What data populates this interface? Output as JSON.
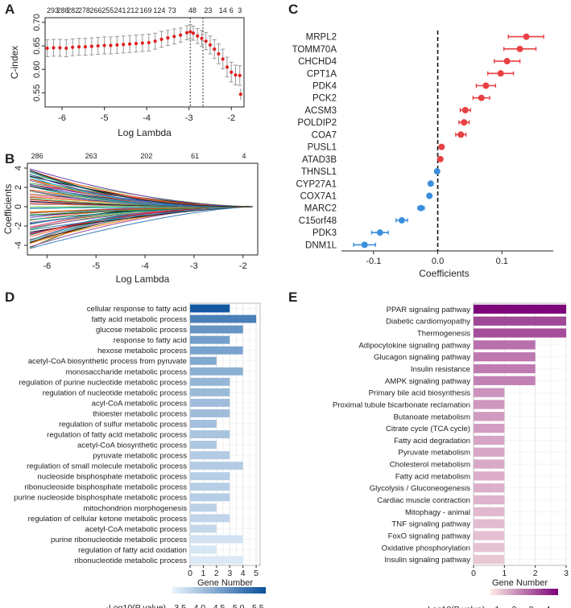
{
  "chart_data": [
    {
      "panel": "A",
      "type": "line",
      "xlabel": "Log Lambda",
      "ylabel": "C-index",
      "xlim": [
        -6.4,
        -1.7
      ],
      "ylim": [
        0.52,
        0.71
      ],
      "xticks": [
        -6,
        -5,
        -4,
        -3,
        -2
      ],
      "yticks": [
        0.55,
        0.6,
        0.65,
        0.7
      ],
      "top_counts": [
        "293",
        "288",
        "282",
        "278",
        "266",
        "255",
        "241",
        "212",
        "169",
        "124",
        "73",
        "48",
        "23",
        "14",
        "6",
        "3"
      ],
      "top_count_positions": [
        -6.22,
        -5.98,
        -5.74,
        -5.48,
        -5.2,
        -4.92,
        -4.63,
        -4.33,
        -4.02,
        -3.7,
        -3.4,
        -2.92,
        -2.55,
        -2.2,
        -2.0,
        -1.8
      ],
      "vlines": [
        -2.97,
        -2.67
      ],
      "x": [
        -6.35,
        -6.2,
        -6.05,
        -5.9,
        -5.75,
        -5.6,
        -5.45,
        -5.3,
        -5.15,
        -5.0,
        -4.85,
        -4.7,
        -4.55,
        -4.4,
        -4.25,
        -4.1,
        -3.95,
        -3.8,
        -3.65,
        -3.5,
        -3.35,
        -3.2,
        -3.05,
        -2.97,
        -2.9,
        -2.8,
        -2.7,
        -2.6,
        -2.5,
        -2.4,
        -2.3,
        -2.2,
        -2.1,
        -2.0,
        -1.9,
        -1.8
      ],
      "y": [
        0.645,
        0.646,
        0.646,
        0.645,
        0.647,
        0.648,
        0.648,
        0.649,
        0.65,
        0.651,
        0.651,
        0.652,
        0.653,
        0.654,
        0.655,
        0.656,
        0.657,
        0.66,
        0.664,
        0.667,
        0.67,
        0.673,
        0.678,
        0.68,
        0.677,
        0.671,
        0.666,
        0.66,
        0.652,
        0.643,
        0.633,
        0.622,
        0.605,
        0.594,
        0.588,
        0.587
      ],
      "err": [
        0.018,
        0.018,
        0.018,
        0.018,
        0.018,
        0.018,
        0.018,
        0.018,
        0.018,
        0.018,
        0.018,
        0.018,
        0.018,
        0.018,
        0.018,
        0.018,
        0.018,
        0.017,
        0.017,
        0.016,
        0.016,
        0.015,
        0.015,
        0.015,
        0.015,
        0.016,
        0.017,
        0.018,
        0.019,
        0.02,
        0.021,
        0.021,
        0.021,
        0.021,
        0.021,
        0.021
      ],
      "extra_point": {
        "x": -1.78,
        "y": 0.547,
        "err": 0.012
      }
    },
    {
      "panel": "B",
      "type": "line",
      "xlabel": "Log Lambda",
      "ylabel": "Coefficients",
      "xlim": [
        -6.4,
        -1.7
      ],
      "ylim": [
        -5,
        4.5
      ],
      "xticks": [
        -6,
        -5,
        -4,
        -3,
        -2
      ],
      "yticks": [
        -4,
        -2,
        0,
        2,
        4
      ],
      "top_counts": [
        "286",
        "263",
        "202",
        "61",
        "4"
      ],
      "top_count_positions": [
        -6.2,
        -5.1,
        -3.97,
        -2.98,
        -1.98
      ],
      "path_start_x": -6.35,
      "path_end_x": -1.8,
      "path_count": 80,
      "coef_range_at_start": [
        -4.4,
        4.0
      ]
    },
    {
      "panel": "C",
      "type": "scatter",
      "xlabel": "Coefficients",
      "xlim": [
        -0.15,
        0.18
      ],
      "xticks": [
        -0.1,
        0.0,
        0.1
      ],
      "xtick_labels": [
        "-0.1",
        "0.0",
        "0.1"
      ],
      "genes": [
        "MRPL2",
        "TOMM70A",
        "CHCHD4",
        "CPT1A",
        "PDK4",
        "PCK2",
        "ACSM3",
        "POLDIP2",
        "COA7",
        "PUSL1",
        "ATAD3B",
        "THNSL1",
        "CYP27A1",
        "COX7A1",
        "MARC2",
        "C15orf48",
        "PDK3",
        "DNM1L"
      ],
      "coef": [
        0.138,
        0.128,
        0.108,
        0.098,
        0.075,
        0.068,
        0.043,
        0.041,
        0.036,
        0.006,
        0.004,
        -0.001,
        -0.011,
        -0.013,
        -0.026,
        -0.056,
        -0.09,
        -0.114
      ],
      "ci_low": [
        0.11,
        0.103,
        0.088,
        0.078,
        0.06,
        0.055,
        0.035,
        0.033,
        0.028,
        0.003,
        0.001,
        -0.004,
        -0.014,
        -0.016,
        -0.031,
        -0.065,
        -0.103,
        -0.131
      ],
      "ci_high": [
        0.165,
        0.153,
        0.128,
        0.118,
        0.09,
        0.081,
        0.051,
        0.049,
        0.044,
        0.009,
        0.007,
        0.002,
        -0.008,
        -0.01,
        -0.021,
        -0.047,
        -0.077,
        -0.097
      ],
      "positive_color": "#e84043",
      "negative_color": "#3a8fdc"
    },
    {
      "panel": "D",
      "type": "bar",
      "orientation": "horizontal",
      "xlabel": "Gene Number",
      "xticks": [
        0,
        1,
        2,
        3,
        4,
        5
      ],
      "categories": [
        "cellular response to fatty acid",
        "fatty acid metabolic process",
        "glucose metabolic process",
        "response to fatty acid",
        "hexose metabolic process",
        "acetyl-CoA biosynthetic process from pyruvate",
        "monosaccharide metabolic process",
        "regulation of purine nucleotide metabolic process",
        "regulation of nucleotide metabolic process",
        "acyl-CoA metabolic process",
        "thioester metabolic process",
        "regulation of sulfur metabolic process",
        "regulation of fatty acid metabolic process",
        "acetyl-CoA biosynthetic process",
        "pyruvate metabolic process",
        "regulation of small molecule metabolic process",
        "nucleoside bisphosphate metabolic process",
        "ribonucleoside bisphosphate metabolic process",
        "purine nucleoside bisphosphate metabolic process",
        "mitochondrion morphogenesis",
        "regulation of cellular ketone metabolic process",
        "acetyl-CoA metabolic process",
        "purine ribonucleotide metabolic process",
        "regulation of fatty acid oxidation",
        "ribonucleotide metabolic process"
      ],
      "values": [
        3,
        5,
        4,
        3,
        4,
        2,
        4,
        3,
        3,
        3,
        3,
        2,
        3,
        2,
        3,
        4,
        3,
        3,
        3,
        2,
        3,
        2,
        4,
        2,
        4
      ],
      "neglog10p": [
        5.6,
        5.0,
        4.7,
        4.55,
        4.5,
        4.4,
        4.3,
        4.2,
        4.15,
        4.1,
        4.1,
        4.05,
        4.0,
        3.95,
        3.9,
        3.9,
        3.85,
        3.85,
        3.85,
        3.8,
        3.75,
        3.7,
        3.55,
        3.5,
        3.45
      ],
      "legend_title": "-Log10(P value)",
      "legend_ticks": [
        "3.5",
        "4.0",
        "4.5",
        "5.0",
        "5.5"
      ],
      "legend_range": [
        3.3,
        5.7
      ],
      "color_low": "#eaf3fb",
      "color_high": "#08519c"
    },
    {
      "panel": "E",
      "type": "bar",
      "orientation": "horizontal",
      "xlabel": "Gene Number",
      "xticks": [
        0,
        1,
        2,
        3
      ],
      "categories": [
        "PPAR signaling pathway",
        "Diabetic cardiomyopathy",
        "Thermogenesis",
        "Adipocytokine signaling pathway",
        "Glucagon signaling pathway",
        "Insulin resistance",
        "AMPK signaling pathway",
        "Primary bile acid biosynthesis",
        "Proximal tubule bicarbonate reclamation",
        "Butanoate metabolism",
        "Citrate cycle (TCA cycle)",
        "Fatty acid degradation",
        "Pyruvate metabolism",
        "Cholesterol metabolism",
        "Fatty acid metabolism",
        "Glycolysis / Gluconeogenesis",
        "Cardiac muscle contraction",
        "Mitophagy - animal",
        "TNF signaling pathway",
        "FoxO signaling pathway",
        "Oxidative phosphorylation",
        "Insulin signaling pathway"
      ],
      "values": [
        3,
        3,
        3,
        2,
        2,
        2,
        2,
        1,
        1,
        1,
        1,
        1,
        1,
        1,
        1,
        1,
        1,
        1,
        1,
        1,
        1,
        1
      ],
      "neglog10p": [
        4.5,
        3.4,
        3.3,
        2.7,
        2.55,
        2.5,
        2.4,
        2.1,
        2.0,
        1.95,
        1.9,
        1.8,
        1.75,
        1.7,
        1.65,
        1.6,
        1.55,
        1.45,
        1.4,
        1.35,
        1.3,
        1.2
      ],
      "legend_title": "-Log10(P value)",
      "legend_ticks": [
        "1",
        "2",
        "3",
        "4"
      ],
      "legend_range": [
        0.6,
        4.6
      ],
      "color_low": "#fdeae6",
      "color_high": "#7a0177"
    }
  ]
}
